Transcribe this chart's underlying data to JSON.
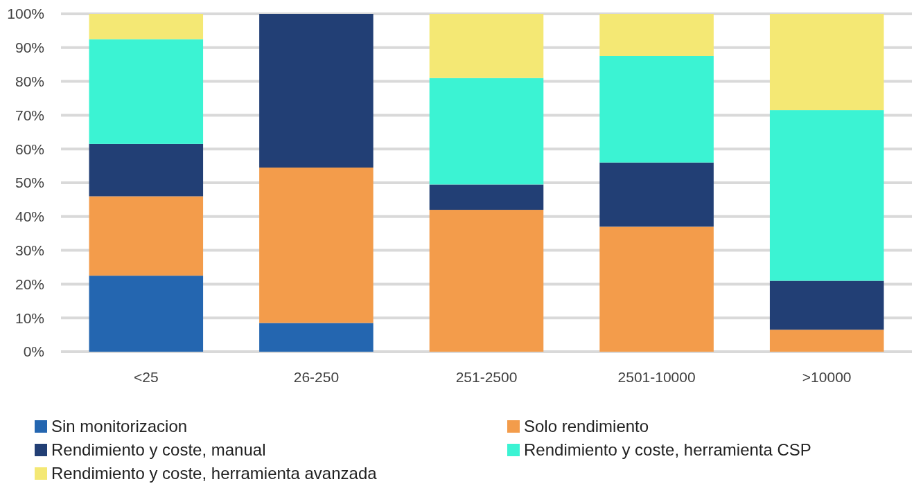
{
  "chart_data": {
    "type": "bar",
    "stacked": true,
    "categories": [
      "<25",
      "26-250",
      "251-2500",
      "2501-10000",
      ">10000"
    ],
    "series": [
      {
        "name": "Sin monitorizacion",
        "color": "#2466b0",
        "values": [
          22.5,
          8.5,
          0,
          0,
          0
        ]
      },
      {
        "name": "Solo rendimiento",
        "color": "#f39c4b",
        "values": [
          23.5,
          46,
          42,
          37,
          6.5
        ]
      },
      {
        "name": "Rendimiento y coste, manual",
        "color": "#223f75",
        "values": [
          15.5,
          45.5,
          7.5,
          19,
          14.5
        ]
      },
      {
        "name": "Rendimiento y coste, herramienta CSP",
        "color": "#3bf3d3",
        "values": [
          31,
          0,
          31.5,
          31.5,
          50.5
        ]
      },
      {
        "name": "Rendimiento y coste, herramienta avanzada",
        "color": "#f4e874",
        "values": [
          7.5,
          0,
          19,
          12.5,
          28.5
        ]
      }
    ],
    "ylim": [
      0,
      100
    ],
    "yticks": [
      {
        "value": 0,
        "label": "0%"
      },
      {
        "value": 10,
        "label": "10%"
      },
      {
        "value": 20,
        "label": "20%"
      },
      {
        "value": 30,
        "label": "30%"
      },
      {
        "value": 40,
        "label": "40%"
      },
      {
        "value": 50,
        "label": "50%"
      },
      {
        "value": 60,
        "label": "60%"
      },
      {
        "value": 70,
        "label": "70%"
      },
      {
        "value": 80,
        "label": "80%"
      },
      {
        "value": 90,
        "label": "90%"
      },
      {
        "value": 100,
        "label": "100%"
      }
    ],
    "grid": "y",
    "legend": "bottom"
  }
}
